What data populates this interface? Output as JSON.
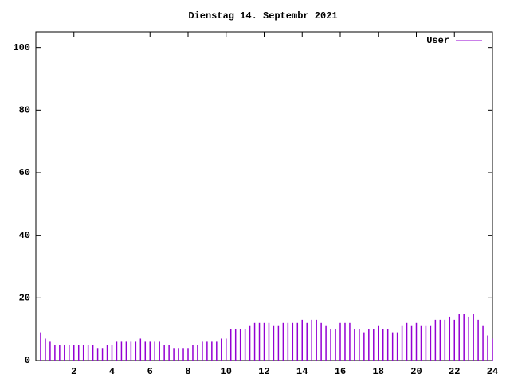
{
  "chart_data": {
    "type": "impulse",
    "title": "Dienstag 14. Septembr 2021",
    "series": [
      {
        "name": "User",
        "color": "#9400d3",
        "x": [
          0.25,
          0.5,
          0.75,
          1,
          1.25,
          1.5,
          1.75,
          2,
          2.25,
          2.5,
          2.75,
          3,
          3.25,
          3.5,
          3.75,
          4,
          4.25,
          4.5,
          4.75,
          5,
          5.25,
          5.5,
          5.75,
          6,
          6.25,
          6.5,
          6.75,
          7,
          7.25,
          7.5,
          7.75,
          8,
          8.25,
          8.5,
          8.75,
          9,
          9.25,
          9.5,
          9.75,
          10,
          10.25,
          10.5,
          10.75,
          11,
          11.25,
          11.5,
          11.75,
          12,
          12.25,
          12.5,
          12.75,
          13,
          13.25,
          13.5,
          13.75,
          14,
          14.25,
          14.5,
          14.75,
          15,
          15.25,
          15.5,
          15.75,
          16,
          16.25,
          16.5,
          16.75,
          17,
          17.25,
          17.5,
          17.75,
          18,
          18.25,
          18.5,
          18.75,
          19,
          19.25,
          19.5,
          19.75,
          20,
          20.25,
          20.5,
          20.75,
          21,
          21.25,
          21.5,
          21.75,
          22,
          22.25,
          22.5,
          22.75,
          23,
          23.25,
          23.5,
          23.75,
          24
        ],
        "values": [
          9,
          7,
          6,
          5,
          5,
          5,
          5,
          5,
          5,
          5,
          5,
          5,
          4,
          4,
          5,
          5,
          6,
          6,
          6,
          6,
          6,
          7,
          6,
          6,
          6,
          6,
          5,
          5,
          4,
          4,
          4,
          4,
          5,
          5,
          6,
          6,
          6,
          6,
          7,
          7,
          10,
          10,
          10,
          10,
          11,
          12,
          12,
          12,
          12,
          11,
          11,
          12,
          12,
          12,
          12,
          13,
          12,
          13,
          13,
          12,
          11,
          10,
          10,
          12,
          12,
          12,
          10,
          10,
          9,
          10,
          10,
          11,
          10,
          10,
          9,
          9,
          11,
          12,
          11,
          12,
          11,
          11,
          11,
          13,
          13,
          13,
          14,
          13,
          15,
          15,
          14,
          15,
          13,
          11,
          8,
          7
        ]
      }
    ],
    "xlim": [
      0,
      24
    ],
    "xticks": [
      2,
      4,
      6,
      8,
      10,
      12,
      14,
      16,
      18,
      20,
      22,
      24
    ],
    "ylim": [
      0,
      105
    ],
    "yticks": [
      0,
      20,
      40,
      60,
      80,
      100
    ],
    "legend": "top-right"
  }
}
